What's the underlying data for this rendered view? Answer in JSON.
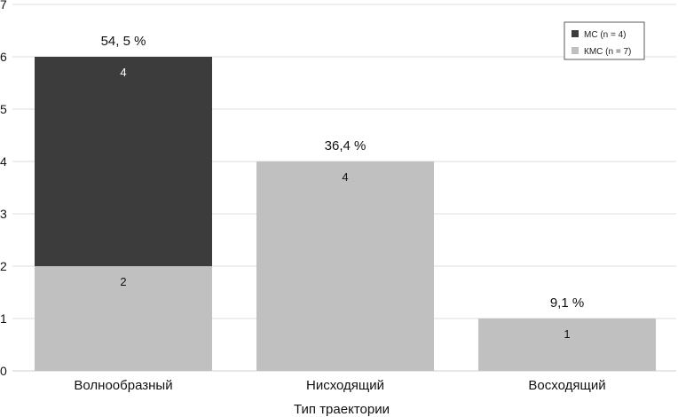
{
  "chart_data": {
    "type": "bar",
    "stacked": true,
    "categories": [
      "Волнообразный",
      "Нисходящий",
      "Восходящий"
    ],
    "series": [
      {
        "name": "КМС (n = 7)",
        "values": [
          2,
          4,
          1
        ],
        "color": "#c0c0c0",
        "label_color": "#111111"
      },
      {
        "name": "МС (n = 4)",
        "values": [
          4,
          0,
          0
        ],
        "color": "#3c3c3c",
        "label_color": "#ffffff"
      }
    ],
    "percent_labels": [
      "54, 5 %",
      "36,4 %",
      "9,1 %"
    ],
    "xlabel": "Тип траектории",
    "ylabel": "",
    "ylim": [
      0,
      7
    ],
    "yticks": [
      0,
      1,
      2,
      3,
      4,
      5,
      6,
      7
    ],
    "grid": true,
    "legend_position": "top-right",
    "legend_order": [
      1,
      0
    ]
  }
}
